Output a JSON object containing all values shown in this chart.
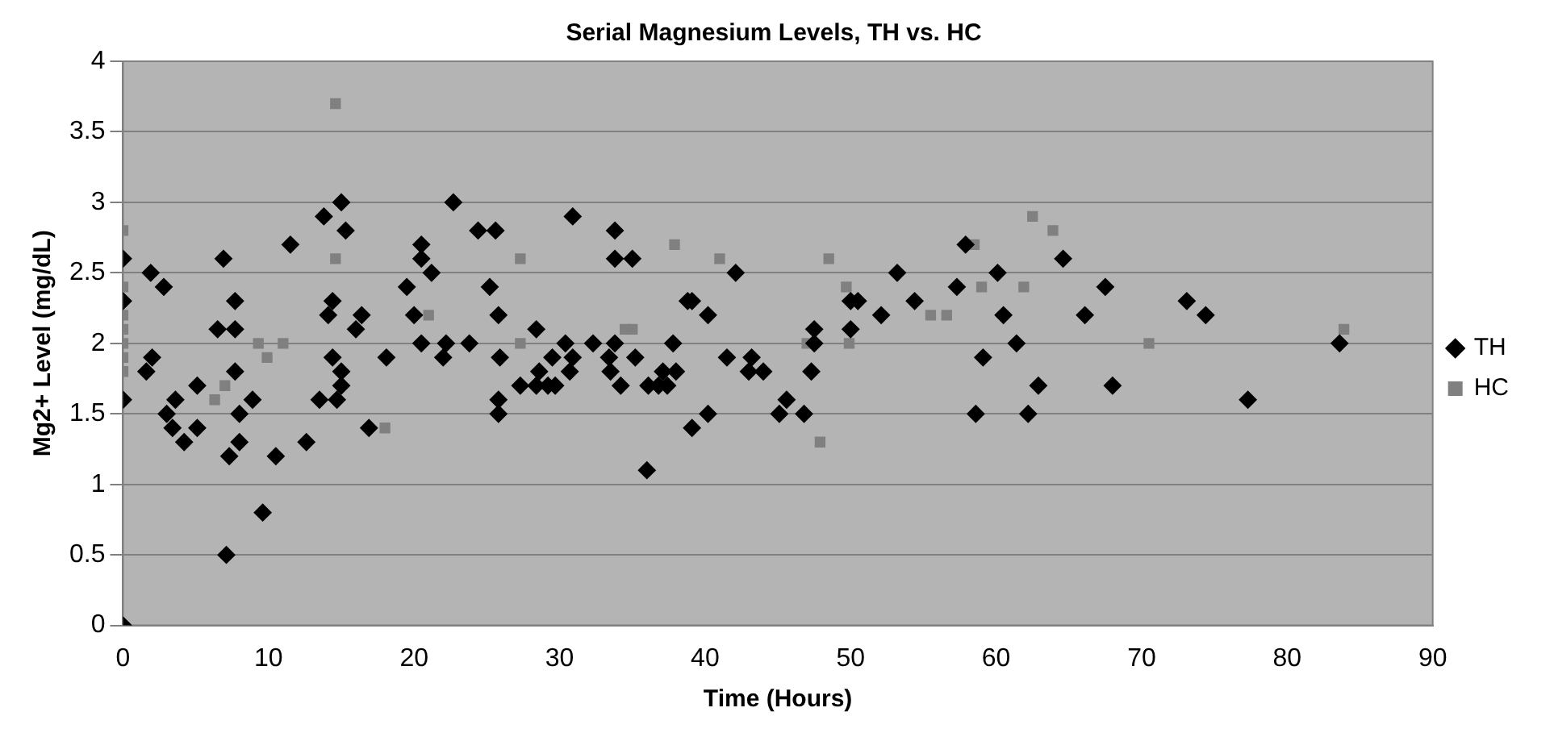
{
  "chart_data": {
    "type": "scatter",
    "title": "Serial Magnesium Levels, TH vs. HC",
    "xlabel": "Time (Hours)",
    "ylabel": "Mg2+ Level (mg/dL)",
    "xlim": [
      0,
      90
    ],
    "xticks": [
      0,
      10,
      20,
      30,
      40,
      50,
      60,
      70,
      80,
      90
    ],
    "ylim": [
      0,
      4
    ],
    "yticks": [
      0,
      0.5,
      1,
      1.5,
      2,
      2.5,
      3,
      3.5,
      4
    ],
    "grid": "y",
    "legend": "right",
    "series": [
      {
        "name": "TH",
        "color": "#000000",
        "marker": "diamond",
        "x": [
          0,
          0,
          0,
          0,
          1.6,
          2.0,
          1.9,
          2.8,
          3.0,
          3.4,
          3.6,
          4.2,
          5.1,
          5.1,
          6.5,
          6.9,
          7.1,
          7.3,
          7.7,
          7.7,
          7.7,
          8.0,
          8.0,
          8.9,
          9.6,
          10.5,
          11.5,
          12.6,
          13.5,
          13.8,
          14.4,
          14.1,
          14.4,
          15.0,
          15.3,
          15.0,
          15.0,
          14.7,
          16.0,
          16.4,
          16.9,
          18.1,
          19.5,
          20.0,
          20.5,
          20.5,
          21.2,
          20.5,
          22.0,
          22.2,
          22.7,
          23.8,
          24.4,
          25.6,
          25.2,
          25.8,
          25.9,
          25.8,
          25.8,
          27.3,
          28.4,
          28.6,
          28.4,
          29.2,
          29.7,
          29.5,
          30.4,
          30.9,
          30.7,
          30.9,
          32.3,
          33.4,
          33.5,
          33.8,
          33.8,
          33.8,
          35.0,
          34.2,
          35.2,
          36.0,
          36.1,
          36.8,
          37.4,
          37.1,
          37.8,
          38.0,
          38.8,
          39.1,
          40.2,
          39.1,
          40.2,
          42.1,
          41.5,
          43.2,
          43.0,
          44.0,
          45.6,
          45.1,
          46.8,
          47.3,
          47.5,
          47.5,
          50.0,
          50.5,
          50.0,
          52.1,
          53.2,
          54.4,
          57.9,
          57.3,
          60.1,
          60.5,
          59.1,
          58.6,
          61.4,
          64.6,
          62.9,
          62.2,
          66.1,
          67.5,
          68.0,
          73.1,
          74.4,
          77.3,
          83.6
        ],
        "values": [
          0,
          1.6,
          2.6,
          2.3,
          1.8,
          1.9,
          2.5,
          2.4,
          1.5,
          1.4,
          1.6,
          1.3,
          1.7,
          1.4,
          2.1,
          2.6,
          0.5,
          1.2,
          2.3,
          2.1,
          1.8,
          1.5,
          1.3,
          1.6,
          0.8,
          1.2,
          2.7,
          1.3,
          1.6,
          2.9,
          2.3,
          2.2,
          1.9,
          3.0,
          2.8,
          1.8,
          1.7,
          1.6,
          2.1,
          2.2,
          1.4,
          1.9,
          2.4,
          2.2,
          2.7,
          2.6,
          2.5,
          2.0,
          1.9,
          2.0,
          3.0,
          2.0,
          2.8,
          2.8,
          2.4,
          2.2,
          1.9,
          1.6,
          1.5,
          1.7,
          2.1,
          1.8,
          1.7,
          1.7,
          1.7,
          1.9,
          2.0,
          1.9,
          1.8,
          2.9,
          2.0,
          1.9,
          1.8,
          2.0,
          2.8,
          2.6,
          2.6,
          1.7,
          1.9,
          1.1,
          1.7,
          1.7,
          1.7,
          1.8,
          2.0,
          1.8,
          2.3,
          2.3,
          2.2,
          1.4,
          1.5,
          2.5,
          1.9,
          1.9,
          1.8,
          1.8,
          1.6,
          1.5,
          1.5,
          1.8,
          2.1,
          2.0,
          2.3,
          2.3,
          2.1,
          2.2,
          2.5,
          2.3,
          2.7,
          2.4,
          2.5,
          2.2,
          1.9,
          1.5,
          2.0,
          2.6,
          1.7,
          1.5,
          2.2,
          2.4,
          1.7,
          2.3,
          2.2,
          1.6,
          2.0
        ]
      },
      {
        "name": "HC",
        "color": "#808080",
        "marker": "square",
        "x": [
          0,
          0,
          0,
          0,
          0,
          0,
          0,
          6.3,
          7.0,
          9.3,
          9.9,
          11.0,
          14.6,
          14.6,
          18.0,
          21.0,
          27.3,
          27.3,
          34.5,
          35.0,
          37.9,
          41.0,
          47.0,
          47.9,
          48.5,
          49.7,
          49.9,
          55.5,
          56.6,
          58.5,
          59.0,
          61.9,
          62.5,
          63.9,
          70.5,
          83.9
        ],
        "values": [
          2.8,
          2.4,
          2.2,
          2.1,
          2.0,
          1.9,
          1.8,
          1.6,
          1.7,
          2.0,
          1.9,
          2.0,
          3.7,
          2.6,
          1.4,
          2.2,
          2.6,
          2.0,
          2.1,
          2.1,
          2.7,
          2.6,
          2.0,
          1.3,
          2.6,
          2.4,
          2.0,
          2.2,
          2.2,
          2.7,
          2.4,
          2.4,
          2.9,
          2.8,
          2.0,
          2.1
        ]
      }
    ]
  }
}
